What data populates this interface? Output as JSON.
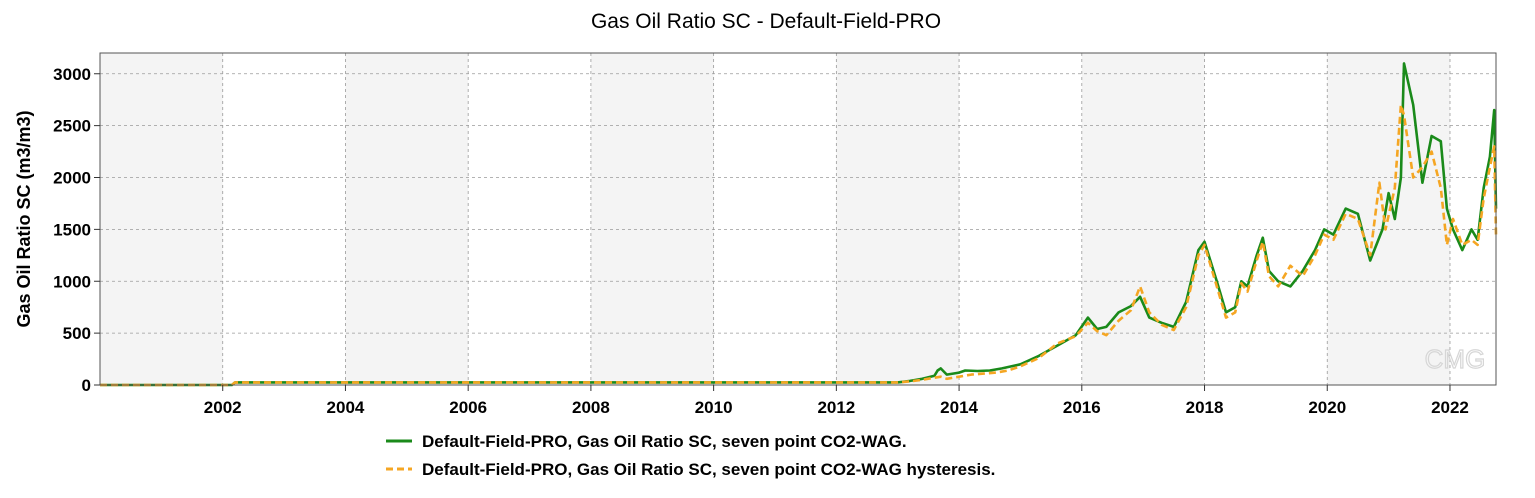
{
  "chart_data": {
    "type": "line",
    "title": "Gas Oil Ratio SC - Default-Field-PRO",
    "xlabel": "",
    "ylabel": "Gas Oil Ratio SC (m3/m3)",
    "xlim": [
      2000.0,
      2022.75
    ],
    "ylim": [
      0,
      3200
    ],
    "x_ticks": [
      2002,
      2004,
      2006,
      2008,
      2010,
      2012,
      2014,
      2016,
      2018,
      2020,
      2022
    ],
    "y_ticks": [
      0,
      500,
      1000,
      1500,
      2000,
      2500,
      3000
    ],
    "grid": true,
    "legend_position": "bottom",
    "watermark": "CMG",
    "series": [
      {
        "name": "Default-Field-PRO, Gas Oil Ratio SC, seven point CO2-WAG.",
        "color": "#1a8a1a",
        "dash": "solid",
        "x": [
          2000.0,
          2002.15,
          2002.2,
          2013.0,
          2013.2,
          2013.4,
          2013.6,
          2013.65,
          2013.7,
          2013.8,
          2014.0,
          2014.1,
          2014.3,
          2014.5,
          2014.7,
          2015.0,
          2015.3,
          2015.6,
          2015.9,
          2016.1,
          2016.25,
          2016.4,
          2016.6,
          2016.8,
          2016.95,
          2017.1,
          2017.3,
          2017.5,
          2017.7,
          2017.9,
          2018.0,
          2018.2,
          2018.35,
          2018.5,
          2018.6,
          2018.7,
          2018.85,
          2018.95,
          2019.05,
          2019.2,
          2019.4,
          2019.6,
          2019.8,
          2019.95,
          2020.1,
          2020.3,
          2020.5,
          2020.7,
          2020.9,
          2021.0,
          2021.1,
          2021.2,
          2021.25,
          2021.4,
          2021.55,
          2021.7,
          2021.85,
          2021.95,
          2022.05,
          2022.2,
          2022.35,
          2022.45,
          2022.55,
          2022.65,
          2022.72,
          2022.75
        ],
        "y": [
          0,
          0,
          25,
          25,
          40,
          60,
          90,
          140,
          160,
          100,
          120,
          140,
          135,
          140,
          160,
          200,
          280,
          380,
          480,
          650,
          540,
          560,
          700,
          760,
          850,
          650,
          600,
          560,
          800,
          1300,
          1380,
          1000,
          700,
          750,
          1000,
          950,
          1250,
          1420,
          1100,
          1000,
          950,
          1100,
          1300,
          1500,
          1450,
          1700,
          1650,
          1200,
          1500,
          1850,
          1600,
          2000,
          3100,
          2700,
          1950,
          2400,
          2350,
          1700,
          1500,
          1300,
          1500,
          1400,
          1900,
          2200,
          2650,
          1700
        ]
      },
      {
        "name": "Default-Field-PRO, Gas Oil Ratio SC, seven point CO2-WAG hysteresis.",
        "color": "#f5a623",
        "dash": "dashed",
        "x": [
          2000.0,
          2002.15,
          2002.2,
          2013.0,
          2013.2,
          2013.4,
          2013.6,
          2013.7,
          2013.8,
          2014.0,
          2014.2,
          2014.4,
          2014.6,
          2014.8,
          2015.0,
          2015.3,
          2015.6,
          2015.9,
          2016.1,
          2016.25,
          2016.4,
          2016.6,
          2016.8,
          2016.95,
          2017.1,
          2017.3,
          2017.5,
          2017.7,
          2017.9,
          2018.0,
          2018.2,
          2018.35,
          2018.5,
          2018.6,
          2018.7,
          2018.85,
          2018.95,
          2019.05,
          2019.2,
          2019.4,
          2019.6,
          2019.8,
          2019.95,
          2020.1,
          2020.3,
          2020.5,
          2020.7,
          2020.85,
          2020.95,
          2021.1,
          2021.2,
          2021.25,
          2021.4,
          2021.55,
          2021.7,
          2021.85,
          2021.95,
          2022.05,
          2022.2,
          2022.35,
          2022.45,
          2022.55,
          2022.65,
          2022.72,
          2022.75
        ],
        "y": [
          0,
          0,
          25,
          25,
          35,
          50,
          70,
          80,
          60,
          80,
          100,
          110,
          120,
          140,
          180,
          260,
          400,
          470,
          600,
          520,
          480,
          620,
          720,
          950,
          700,
          580,
          530,
          750,
          1250,
          1350,
          950,
          650,
          700,
          980,
          900,
          1200,
          1380,
          1050,
          950,
          1150,
          1050,
          1250,
          1450,
          1400,
          1650,
          1600,
          1250,
          1950,
          1500,
          1900,
          2700,
          2600,
          2000,
          2100,
          2250,
          1900,
          1350,
          1600,
          1350,
          1400,
          1350,
          1800,
          2100,
          2300,
          1450
        ]
      }
    ]
  }
}
